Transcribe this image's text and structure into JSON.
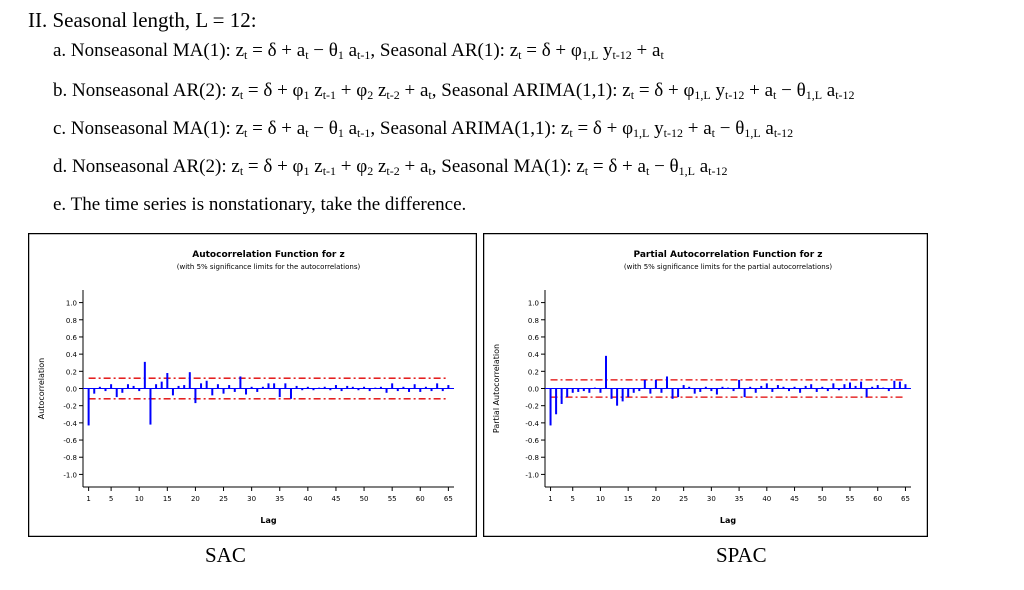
{
  "heading": "II. Seasonal length, L = 12:",
  "items": [
    [
      "a. Nonseasonal MA(1): z",
      {
        "sub": "t"
      },
      " = δ + a",
      {
        "sub": "t"
      },
      " − θ",
      {
        "sub": "1"
      },
      " a",
      {
        "sub": "t-1"
      },
      ", Seasonal AR(1): z",
      {
        "sub": "t"
      },
      " = δ + φ",
      {
        "sub": "1,L"
      },
      " y",
      {
        "sub": "t-12"
      },
      " + a",
      {
        "sub": "t"
      }
    ],
    [
      "b. Nonseasonal AR(2): z",
      {
        "sub": "t"
      },
      " = δ + φ",
      {
        "sub": "1"
      },
      " z",
      {
        "sub": "t-1"
      },
      " + φ",
      {
        "sub": "2"
      },
      " z",
      {
        "sub": "t-2"
      },
      " + a",
      {
        "sub": "t"
      },
      ", Seasonal ARIMA(1,1): z",
      {
        "sub": "t"
      },
      " = δ + φ",
      {
        "sub": "1,L"
      },
      " y",
      {
        "sub": "t-12"
      },
      " + a",
      {
        "sub": "t"
      },
      " − θ",
      {
        "sub": "1,L"
      },
      " a",
      {
        "sub": "t-12"
      }
    ],
    [
      "c. Nonseasonal MA(1): z",
      {
        "sub": "t"
      },
      " = δ + a",
      {
        "sub": "t"
      },
      " − θ",
      {
        "sub": "1"
      },
      " a",
      {
        "sub": "t-1"
      },
      ", Seasonal ARIMA(1,1): z",
      {
        "sub": "t"
      },
      " = δ + φ",
      {
        "sub": "1,L"
      },
      " y",
      {
        "sub": "t-12"
      },
      " + a",
      {
        "sub": "t"
      },
      " − θ",
      {
        "sub": "1,L"
      },
      " a",
      {
        "sub": "t-12"
      }
    ],
    [
      "d. Nonseasonal AR(2): z",
      {
        "sub": "t"
      },
      " = δ + φ",
      {
        "sub": "1"
      },
      " z",
      {
        "sub": "t-1"
      },
      " + φ",
      {
        "sub": "2"
      },
      " z",
      {
        "sub": "t-2"
      },
      " + a",
      {
        "sub": "t"
      },
      ", Seasonal MA(1): z",
      {
        "sub": "t"
      },
      " = δ + a",
      {
        "sub": "t"
      },
      " − θ",
      {
        "sub": "1,L"
      },
      " a",
      {
        "sub": "t-12"
      }
    ],
    [
      "e. The time series is nonstationary, take the difference."
    ]
  ],
  "chart_data": [
    {
      "type": "bar",
      "title": "Autocorrelation Function for z",
      "subtitle": "(with 5% significance limits for the autocorrelations)",
      "x_label": "Lag",
      "y_label": "Autocorrelation",
      "caption": "SAC",
      "color": "#0000ff",
      "limit_color": "#e00000",
      "x": [
        1,
        2,
        3,
        4,
        5,
        6,
        7,
        8,
        9,
        10,
        11,
        12,
        13,
        14,
        15,
        16,
        17,
        18,
        19,
        20,
        21,
        22,
        23,
        24,
        25,
        26,
        27,
        28,
        29,
        30,
        31,
        32,
        33,
        34,
        35,
        36,
        37,
        38,
        39,
        40,
        41,
        42,
        43,
        44,
        45,
        46,
        47,
        48,
        49,
        50,
        51,
        52,
        53,
        54,
        55,
        56,
        57,
        58,
        59,
        60,
        61,
        62,
        63,
        64,
        65
      ],
      "values": [
        -0.43,
        -0.06,
        0.02,
        -0.03,
        0.05,
        -0.1,
        -0.05,
        0.05,
        0.03,
        -0.03,
        0.31,
        -0.42,
        0.05,
        0.08,
        0.18,
        -0.08,
        0.03,
        0.04,
        0.19,
        -0.17,
        0.06,
        0.09,
        -0.08,
        0.05,
        -0.06,
        0.04,
        -0.04,
        0.14,
        -0.07,
        0.02,
        -0.04,
        0.02,
        0.06,
        0.06,
        -0.1,
        0.06,
        -0.12,
        0.03,
        -0.02,
        0.02,
        -0.02,
        0.01,
        0.02,
        -0.02,
        0.04,
        -0.03,
        0.03,
        0.02,
        -0.02,
        0.02,
        -0.03,
        0.01,
        0.02,
        -0.05,
        0.06,
        -0.03,
        0.02,
        -0.04,
        0.05,
        -0.04,
        0.02,
        -0.03,
        0.06,
        -0.03,
        0.04
      ],
      "significance_limits": [
        0.12,
        -0.12
      ],
      "xlim": [
        0,
        66
      ],
      "xticks": [
        1,
        5,
        10,
        15,
        20,
        25,
        30,
        35,
        40,
        45,
        50,
        55,
        60,
        65
      ],
      "ylim": [
        -1.1,
        1.1
      ],
      "yticks": [
        {
          "value": 1,
          "label": "1.0"
        },
        {
          "value": 0.8,
          "label": "0.8"
        },
        {
          "value": 0.6,
          "label": "0.6"
        },
        {
          "value": 0.4,
          "label": "0.4"
        },
        {
          "value": 0.2,
          "label": "0.2"
        },
        {
          "value": 0,
          "label": "0.0"
        },
        {
          "value": -0.2,
          "label": "-0.2"
        },
        {
          "value": -0.4,
          "label": "-0.4"
        },
        {
          "value": -0.6,
          "label": "-0.6"
        },
        {
          "value": -0.8,
          "label": "-0.8"
        },
        {
          "value": -1,
          "label": "-1.0"
        }
      ]
    },
    {
      "type": "bar",
      "title": "Partial Autocorrelation Function for z",
      "subtitle": "(with 5% significance limits for the partial autocorrelations)",
      "x_label": "Lag",
      "y_label": "Partial Autocorrelation",
      "caption": "SPAC",
      "color": "#0000ff",
      "limit_color": "#e00000",
      "x": [
        1,
        2,
        3,
        4,
        5,
        6,
        7,
        8,
        9,
        10,
        11,
        12,
        13,
        14,
        15,
        16,
        17,
        18,
        19,
        20,
        21,
        22,
        23,
        24,
        25,
        26,
        27,
        28,
        29,
        30,
        31,
        32,
        33,
        34,
        35,
        36,
        37,
        38,
        39,
        40,
        41,
        42,
        43,
        44,
        45,
        46,
        47,
        48,
        49,
        50,
        51,
        52,
        53,
        54,
        55,
        56,
        57,
        58,
        59,
        60,
        61,
        62,
        63,
        64,
        65
      ],
      "values": [
        -0.43,
        -0.3,
        -0.18,
        -0.1,
        -0.05,
        -0.04,
        -0.03,
        -0.05,
        0.01,
        -0.05,
        0.38,
        -0.12,
        -0.2,
        -0.15,
        -0.1,
        -0.05,
        -0.03,
        0.1,
        -0.06,
        0.1,
        -0.05,
        0.14,
        -0.12,
        -0.1,
        0.04,
        0.02,
        -0.06,
        -0.04,
        0.02,
        -0.03,
        -0.07,
        0.02,
        0.01,
        -0.03,
        0.1,
        -0.1,
        0.02,
        -0.05,
        0.03,
        0.06,
        -0.04,
        0.04,
        0.02,
        -0.03,
        0.02,
        -0.05,
        0.03,
        0.05,
        -0.04,
        0.02,
        -0.03,
        0.06,
        -0.02,
        0.05,
        0.07,
        0.03,
        0.08,
        -0.1,
        0.02,
        0.04,
        0.01,
        -0.03,
        0.09,
        0.08,
        0.05
      ],
      "significance_limits": [
        0.1,
        -0.1
      ],
      "xlim": [
        0,
        66
      ],
      "xticks": [
        1,
        5,
        10,
        15,
        20,
        25,
        30,
        35,
        40,
        45,
        50,
        55,
        60,
        65
      ],
      "ylim": [
        -1.1,
        1.1
      ],
      "yticks": [
        {
          "value": 1,
          "label": "1.0"
        },
        {
          "value": 0.8,
          "label": "0.8"
        },
        {
          "value": 0.6,
          "label": "0.6"
        },
        {
          "value": 0.4,
          "label": "0.4"
        },
        {
          "value": 0.2,
          "label": "0.2"
        },
        {
          "value": 0,
          "label": "0.0"
        },
        {
          "value": -0.2,
          "label": "-0.2"
        },
        {
          "value": -0.4,
          "label": "-0.4"
        },
        {
          "value": -0.6,
          "label": "-0.6"
        },
        {
          "value": -0.8,
          "label": "-0.8"
        },
        {
          "value": -1,
          "label": "-1.0"
        }
      ]
    }
  ]
}
